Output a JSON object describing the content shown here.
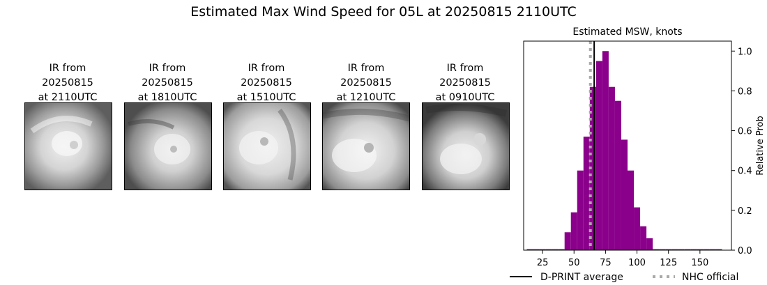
{
  "figure": {
    "title": "Estimated Max Wind Speed for 05L at 20250815 2110UTC"
  },
  "ir_panels": [
    {
      "line1": "IR from",
      "line2": "20250815",
      "line3": "at 2110UTC"
    },
    {
      "line1": "IR from",
      "line2": "20250815",
      "line3": "at 1810UTC"
    },
    {
      "line1": "IR from",
      "line2": "20250815",
      "line3": "at 1510UTC"
    },
    {
      "line1": "IR from",
      "line2": "20250815",
      "line3": "at 1210UTC"
    },
    {
      "line1": "IR from",
      "line2": "20250815",
      "line3": "at 0910UTC"
    }
  ],
  "chart_data": {
    "type": "bar",
    "title": "Estimated MSW, knots",
    "xlabel": "",
    "ylabel": "Relative Prob",
    "xlim": [
      10,
      175
    ],
    "ylim": [
      0,
      1.05
    ],
    "xticks": [
      25,
      50,
      75,
      100,
      125,
      150
    ],
    "yticks": [
      0.0,
      0.2,
      0.4,
      0.6,
      0.8,
      1.0
    ],
    "bin_width": 5,
    "bars": [
      {
        "x": 15,
        "y": 0.005
      },
      {
        "x": 20,
        "y": 0.005
      },
      {
        "x": 25,
        "y": 0.005
      },
      {
        "x": 30,
        "y": 0.005
      },
      {
        "x": 35,
        "y": 0.005
      },
      {
        "x": 40,
        "y": 0.005
      },
      {
        "x": 45,
        "y": 0.09
      },
      {
        "x": 50,
        "y": 0.19
      },
      {
        "x": 55,
        "y": 0.4
      },
      {
        "x": 60,
        "y": 0.57
      },
      {
        "x": 65,
        "y": 0.82
      },
      {
        "x": 70,
        "y": 0.95
      },
      {
        "x": 75,
        "y": 1.0
      },
      {
        "x": 80,
        "y": 0.82
      },
      {
        "x": 85,
        "y": 0.75
      },
      {
        "x": 90,
        "y": 0.555
      },
      {
        "x": 95,
        "y": 0.4
      },
      {
        "x": 100,
        "y": 0.215
      },
      {
        "x": 105,
        "y": 0.12
      },
      {
        "x": 110,
        "y": 0.06
      },
      {
        "x": 115,
        "y": 0.005
      },
      {
        "x": 120,
        "y": 0.005
      },
      {
        "x": 125,
        "y": 0.005
      },
      {
        "x": 130,
        "y": 0.005
      },
      {
        "x": 135,
        "y": 0.005
      },
      {
        "x": 140,
        "y": 0.005
      },
      {
        "x": 145,
        "y": 0.005
      },
      {
        "x": 150,
        "y": 0.005
      },
      {
        "x": 155,
        "y": 0.005
      },
      {
        "x": 160,
        "y": 0.005
      },
      {
        "x": 165,
        "y": 0.005
      }
    ],
    "dprint_average": 66,
    "nhc_official": 63,
    "legend": [
      {
        "label": "D-PRINT average",
        "style": "solid",
        "color": "#000000"
      },
      {
        "label": "NHC official",
        "style": "dotted",
        "color": "#aaaaaa"
      }
    ],
    "legend_position": "bottom",
    "bar_color": "#8b008b"
  }
}
